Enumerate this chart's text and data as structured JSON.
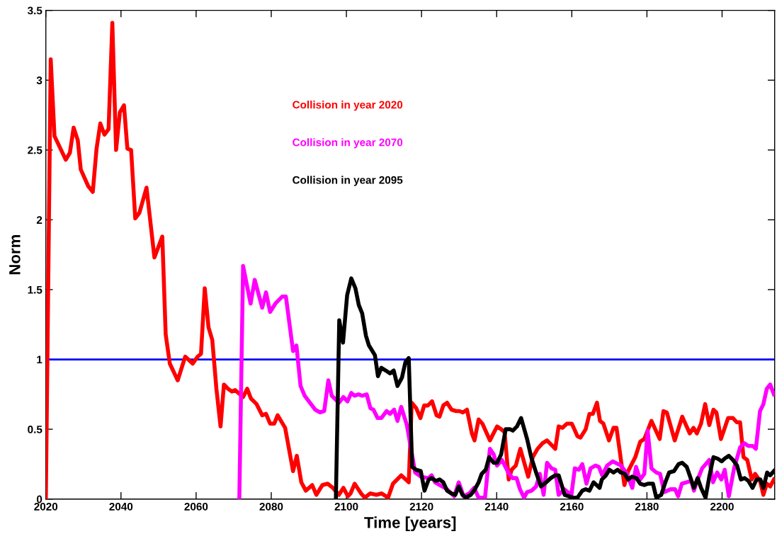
{
  "chart_data": {
    "type": "line",
    "xlabel": "Time [years]",
    "ylabel": "Norm",
    "xlim": [
      2020,
      2214
    ],
    "xticks": [
      2020,
      2040,
      2060,
      2080,
      2100,
      2120,
      2140,
      2160,
      2180,
      2200
    ],
    "ylim": [
      0,
      3.5
    ],
    "yticks": [
      0,
      0.5,
      1,
      1.5,
      2,
      2.5,
      3,
      3.5
    ],
    "grid": false,
    "marker": "none",
    "line_style": "solid",
    "ref_lines": [
      {
        "axis": "y",
        "value": 1,
        "label": null,
        "color": "#0000ff",
        "line_style": "solid"
      }
    ],
    "series": [
      {
        "name": "Collision in year 2020",
        "color": "#ff0000",
        "x": [
          2020,
          2021.3,
          2022.3,
          2025.3,
          2026.4,
          2027.4,
          2028.5,
          2029.3,
          2031.3,
          2032.5,
          2033.5,
          2034.5,
          2035.6,
          2036.7,
          2037.7,
          2038.7,
          2039.7,
          2040.8,
          2041.7,
          2042.7,
          2043.8,
          2044.9,
          2046.8,
          2048.9,
          2051,
          2051.9,
          2053,
          2055.1,
          2057.1,
          2059.1,
          2060.4,
          2061.3,
          2062.3,
          2063.3,
          2064.3,
          2065.4,
          2066.5,
          2067.4,
          2068.5,
          2069.5,
          2070.4,
          2072.5,
          2073.6,
          2074.6,
          2076.1,
          2077.6,
          2078.6,
          2079.7,
          2080.8,
          2081.7,
          2083.7,
          2085.8,
          2086.8,
          2088,
          2089.2,
          2090.9,
          2092,
          2093.6,
          2095,
          2096.4,
          2098,
          2099.2,
          2100.4,
          2101.1,
          2102.2,
          2103.9,
          2104.9,
          2106.3,
          2108,
          2109.4,
          2111.1,
          2112.4,
          2114.6,
          2116.6,
          2117.4,
          2118.6,
          2119.7,
          2120.7,
          2121.7,
          2122.8,
          2124,
          2124.8,
          2125.8,
          2126.8,
          2128,
          2129.2,
          2130.1,
          2131,
          2132.1,
          2133.4,
          2134.1,
          2135.2,
          2136.2,
          2138.2,
          2140.1,
          2141.2,
          2142.1,
          2143.2,
          2144,
          2145.1,
          2146.3,
          2148.4,
          2149.6,
          2150.9,
          2152.2,
          2153.4,
          2155.6,
          2156.5,
          2157.5,
          2158.7,
          2160,
          2161.5,
          2162.3,
          2163.7,
          2164.7,
          2165.6,
          2166.7,
          2167.5,
          2168.4,
          2169.9,
          2171.1,
          2171.9,
          2174,
          2175,
          2176.9,
          2178.2,
          2179.3,
          2181.2,
          2183.4,
          2184.4,
          2185.3,
          2187.4,
          2189.4,
          2191.4,
          2192.4,
          2193.3,
          2194.4,
          2195.5,
          2196.6,
          2197.7,
          2198.5,
          2199.7,
          2201.6,
          2202.9,
          2203.9,
          2204.8,
          2205.7,
          2206.7,
          2207.9,
          2208.8,
          2210.1,
          2211,
          2211.9,
          2212.8,
          2213.8
        ],
        "values": [
          0,
          3.15,
          2.6,
          2.43,
          2.48,
          2.66,
          2.57,
          2.36,
          2.24,
          2.2,
          2.51,
          2.69,
          2.61,
          2.65,
          3.41,
          2.5,
          2.77,
          2.82,
          2.51,
          2.5,
          2.01,
          2.05,
          2.23,
          1.73,
          1.88,
          1.18,
          0.97,
          0.85,
          1.02,
          0.97,
          1.02,
          1.04,
          1.51,
          1.23,
          1.14,
          0.79,
          0.52,
          0.82,
          0.79,
          0.77,
          0.78,
          0.73,
          0.79,
          0.72,
          0.68,
          0.6,
          0.61,
          0.54,
          0.54,
          0.6,
          0.51,
          0.2,
          0.31,
          0.12,
          0.06,
          0.1,
          0.03,
          0.1,
          0.11,
          0.08,
          0.03,
          0.08,
          0.02,
          0.04,
          0.11,
          0.04,
          0.01,
          0.04,
          0.03,
          0.04,
          0.01,
          0.11,
          0.17,
          0.12,
          0.69,
          0.65,
          0.58,
          0.67,
          0.67,
          0.7,
          0.6,
          0.59,
          0.67,
          0.69,
          0.64,
          0.63,
          0.63,
          0.62,
          0.64,
          0.47,
          0.42,
          0.57,
          0.54,
          0.42,
          0.52,
          0.5,
          0.48,
          0.14,
          0.21,
          0.24,
          0.36,
          0.16,
          0.3,
          0.36,
          0.4,
          0.42,
          0.36,
          0.52,
          0.51,
          0.54,
          0.54,
          0.45,
          0.44,
          0.5,
          0.61,
          0.61,
          0.69,
          0.56,
          0.54,
          0.42,
          0.51,
          0.51,
          0.1,
          0.2,
          0.3,
          0.41,
          0.43,
          0.56,
          0.43,
          0.63,
          0.62,
          0.42,
          0.59,
          0.47,
          0.51,
          0.47,
          0.54,
          0.68,
          0.53,
          0.64,
          0.62,
          0.43,
          0.58,
          0.58,
          0.55,
          0.55,
          0.3,
          0.28,
          0.14,
          0.18,
          0.13,
          0.03,
          0.11,
          0.09,
          0.14
        ]
      },
      {
        "name": "Collision in year 2070",
        "color": "#ff00ff",
        "x": [
          2071.5,
          2072.5,
          2074.5,
          2075.6,
          2077.6,
          2078.6,
          2079.7,
          2081.1,
          2082.9,
          2083.9,
          2085.8,
          2086.7,
          2087.8,
          2088.9,
          2091.7,
          2093,
          2094.1,
          2095.2,
          2096.1,
          2098,
          2099.2,
          2100.3,
          2101.3,
          2102.2,
          2103.2,
          2104.2,
          2105.4,
          2106.4,
          2107.2,
          2108.3,
          2109.3,
          2110.7,
          2111.6,
          2112.7,
          2113.6,
          2114.6,
          2116.1,
          2118.3,
          2119.9,
          2121.8,
          2122.7,
          2123.6,
          2125.5,
          2126.8,
          2128.7,
          2129.9,
          2131.2,
          2132.7,
          2134,
          2135.2,
          2136.9,
          2138.2,
          2139.2,
          2140.1,
          2141.4,
          2143.1,
          2144.2,
          2145.3,
          2146.2,
          2147.3,
          2148.1,
          2149.3,
          2150.5,
          2151.5,
          2152.5,
          2153.4,
          2154.6,
          2155.6,
          2156.5,
          2158,
          2158.9,
          2159.9,
          2160.8,
          2161.9,
          2162.8,
          2163.9,
          2165,
          2166.3,
          2167.2,
          2168.1,
          2169.4,
          2170.9,
          2173.1,
          2174.7,
          2176.1,
          2177.1,
          2178.2,
          2179.3,
          2180.2,
          2181.2,
          2182.5,
          2183.5,
          2184.6,
          2186.3,
          2187.5,
          2188.3,
          2189.3,
          2190.5,
          2191.8,
          2192.5,
          2193.5,
          2194.7,
          2196.6,
          2197.6,
          2198.7,
          2199.8,
          2200.7,
          2201.8,
          2203.2,
          2204.8,
          2205.9,
          2207,
          2208.2,
          2209,
          2210.1,
          2211,
          2211.9,
          2212.8,
          2213.8
        ],
        "values": [
          0,
          1.67,
          1.4,
          1.57,
          1.37,
          1.48,
          1.34,
          1.4,
          1.45,
          1.45,
          1.06,
          1.1,
          0.81,
          0.74,
          0.64,
          0.62,
          0.63,
          0.85,
          0.74,
          0.69,
          0.73,
          0.7,
          0.76,
          0.74,
          0.75,
          0.74,
          0.75,
          0.65,
          0.64,
          0.58,
          0.58,
          0.63,
          0.61,
          0.64,
          0.56,
          0.66,
          0.53,
          0.19,
          0.16,
          0.15,
          0.17,
          0.12,
          0.09,
          0.07,
          0.02,
          0.12,
          0.02,
          0.04,
          0.08,
          0.01,
          0.01,
          0.36,
          0.32,
          0.24,
          0.28,
          0.19,
          0.15,
          0.15,
          0.07,
          0.01,
          0.05,
          0.06,
          0.09,
          0.18,
          0.03,
          0.26,
          0.22,
          0.21,
          0.03,
          0.07,
          0.05,
          0.03,
          0.22,
          0.21,
          0.25,
          0.11,
          0.22,
          0.24,
          0.23,
          0.17,
          0.24,
          0.27,
          0.24,
          0.18,
          0.08,
          0.23,
          0.14,
          0.18,
          0.49,
          0.22,
          0.19,
          0.18,
          0.05,
          0.07,
          0.07,
          0.02,
          0.11,
          0.12,
          0.13,
          0.06,
          0.14,
          0.22,
          0.28,
          0.12,
          0.19,
          0.14,
          0.21,
          0.02,
          0.22,
          0.37,
          0.4,
          0.38,
          0.38,
          0.36,
          0.63,
          0.68,
          0.79,
          0.82,
          0.75
        ]
      },
      {
        "name": "Collision in year 2095",
        "color": "#000000",
        "x": [
          2097.2,
          2098.1,
          2099.1,
          2100.2,
          2101.3,
          2102.4,
          2103.3,
          2104.2,
          2105.2,
          2106,
          2106.7,
          2107.6,
          2108.4,
          2109.3,
          2110.5,
          2111.6,
          2112.6,
          2113.6,
          2114.8,
          2115.7,
          2116.6,
          2117.5,
          2118.5,
          2119.8,
          2120.8,
          2121.9,
          2122.7,
          2123.8,
          2124.8,
          2125.8,
          2126.8,
          2128,
          2129,
          2129.9,
          2130.9,
          2131.8,
          2133.1,
          2134,
          2135.2,
          2136,
          2137.1,
          2138,
          2139.2,
          2140.1,
          2141.2,
          2142.4,
          2143.6,
          2144.3,
          2145.4,
          2146.5,
          2148.1,
          2149.2,
          2150.5,
          2151.8,
          2153.2,
          2154.4,
          2155.6,
          2156.5,
          2158.1,
          2160.3,
          2161.5,
          2162.8,
          2163.7,
          2164.7,
          2165.8,
          2167.4,
          2168,
          2169.1,
          2170,
          2171.1,
          2172.2,
          2173,
          2174.1,
          2175,
          2176,
          2177.2,
          2178.2,
          2179.3,
          2180.3,
          2181.6,
          2182.5,
          2183.8,
          2184.9,
          2185.9,
          2187.2,
          2188.4,
          2189.4,
          2190.6,
          2191.5,
          2192.5,
          2193.5,
          2194.4,
          2195.6,
          2196.6,
          2197.7,
          2198.8,
          2199.9,
          2200.7,
          2201.8,
          2202.9,
          2204,
          2205,
          2206,
          2207,
          2208.1,
          2209.2,
          2210.2,
          2211,
          2212,
          2212.8,
          2213.8
        ],
        "values": [
          0,
          1.28,
          1.12,
          1.46,
          1.58,
          1.51,
          1.39,
          1.33,
          1.17,
          1.1,
          1.07,
          1.03,
          0.88,
          0.94,
          0.92,
          0.9,
          0.92,
          0.81,
          0.87,
          0.98,
          1.01,
          0.23,
          0.21,
          0.2,
          0.06,
          0.14,
          0.15,
          0.13,
          0.14,
          0.12,
          0.06,
          0.04,
          0.03,
          0.09,
          0.03,
          0.01,
          0.03,
          0.06,
          0.12,
          0.18,
          0.21,
          0.3,
          0.26,
          0.26,
          0.32,
          0.5,
          0.5,
          0.49,
          0.52,
          0.58,
          0.43,
          0.3,
          0.19,
          0.09,
          0.12,
          0.15,
          0.17,
          0.17,
          0.03,
          0.01,
          0.01,
          0.06,
          0.07,
          0.06,
          0.12,
          0.08,
          0.14,
          0.17,
          0.21,
          0.19,
          0.21,
          0.19,
          0.18,
          0.14,
          0.16,
          0.15,
          0.11,
          0.1,
          0.11,
          0.11,
          0.01,
          0.03,
          0.12,
          0.19,
          0.2,
          0.25,
          0.26,
          0.23,
          0.16,
          0.08,
          0.15,
          0.08,
          0.01,
          0.16,
          0.3,
          0.29,
          0.27,
          0.29,
          0.31,
          0.28,
          0.24,
          0.14,
          0.15,
          0.13,
          0.08,
          0.14,
          0.14,
          0.08,
          0.19,
          0.17,
          0.2
        ]
      }
    ]
  }
}
